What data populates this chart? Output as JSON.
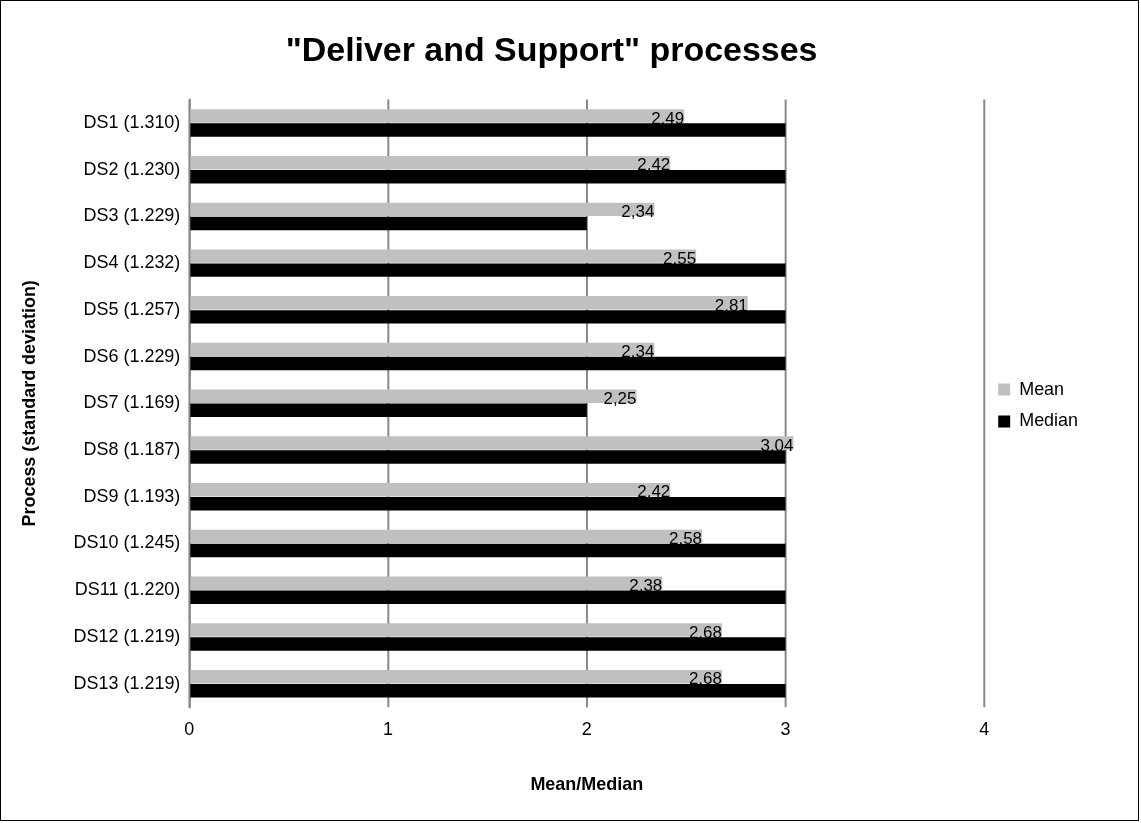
{
  "chart_data": {
    "type": "bar",
    "orientation": "horizontal",
    "title": "\"Deliver and Support\" processes",
    "xlabel": "Mean/Median",
    "ylabel": "Process (standard deviation)",
    "categories": [
      "DS1 (1.310)",
      "DS2 (1.230)",
      "DS3 (1.229)",
      "DS4 (1.232)",
      "DS5 (1.257)",
      "DS6 (1.229)",
      "DS7 (1.169)",
      "DS8 (1.187)",
      "DS9 (1.193)",
      "DS10 (1.245)",
      "DS11 (1.220)",
      "DS12 (1.219)",
      "DS13 (1.219)"
    ],
    "series": [
      {
        "name": "Mean",
        "color": "#c0c0c0",
        "values": [
          2.49,
          2.42,
          2.34,
          2.55,
          2.81,
          2.34,
          2.25,
          3.04,
          2.42,
          2.58,
          2.38,
          2.68,
          2.68
        ],
        "value_labels": [
          "2,49",
          "2,42",
          "2,34",
          "2,55",
          "2,81",
          "2,34",
          "2,25",
          "3,04",
          "2,42",
          "2,58",
          "2,38",
          "2,68",
          "2,68"
        ]
      },
      {
        "name": "Median",
        "color": "#000000",
        "values": [
          3,
          3,
          2,
          3,
          3,
          3,
          2,
          3,
          3,
          3,
          3,
          3,
          3
        ]
      }
    ],
    "xlim": [
      0,
      4
    ],
    "xticks": [
      0,
      1,
      2,
      3,
      4
    ],
    "grid": "x",
    "legend": "right"
  }
}
